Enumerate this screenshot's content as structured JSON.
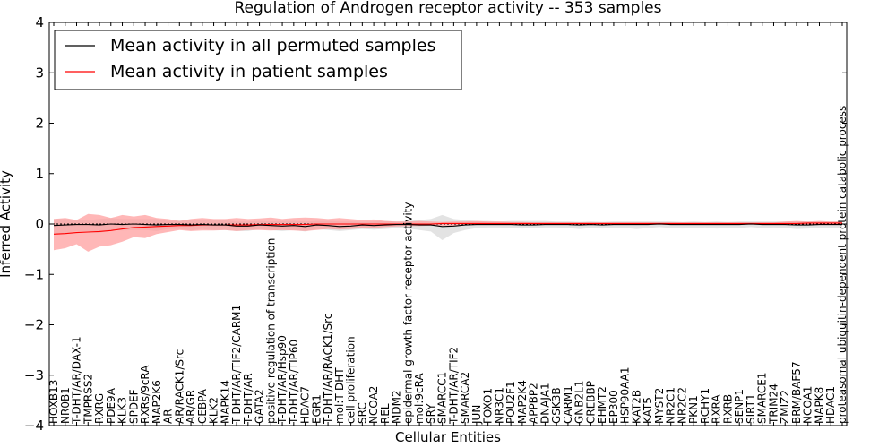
{
  "chart_data": {
    "type": "line",
    "title": "Regulation of Androgen receptor activity -- 353 samples",
    "xlabel": "Cellular Entities",
    "ylabel": "Inferred Activity",
    "ylim": [
      -4,
      4
    ],
    "yticks": [
      4,
      3,
      2,
      1,
      0,
      -1,
      -2,
      -3,
      -4
    ],
    "ytick_labels": [
      "4",
      "3",
      "2",
      "1",
      "0",
      "−1",
      "−2",
      "−3",
      "−4"
    ],
    "grid": false,
    "reference_line": 0,
    "legend": {
      "position": "top-left",
      "entries": [
        {
          "label": "Mean activity in all permuted samples",
          "color": "#000000"
        },
        {
          "label": "Mean activity in patient samples",
          "color": "#ff0000"
        }
      ]
    },
    "categories": [
      "HOXB13",
      "NR0B1",
      "T-DHT/AR/DAX-1",
      "TMPRSS2",
      "RXRG",
      "PDE9A",
      "KLK3",
      "SPDEF",
      "RXRs/9cRA",
      "MAP2K6",
      "AR",
      "AR/RACK1/Src",
      "AR/GR",
      "CEBPA",
      "KLK2",
      "MAPK14",
      "T-DHT/AR/TIF2/CARM1",
      "T-DHT/AR",
      "GATA2",
      "positive regulation of transcription",
      "T-DHT/AR/Hsp90",
      "T-DHT/AR/TIP60",
      "HDAC7",
      "EGR1",
      "T-DHT/AR/RACK1/Src",
      "mol:T-DHT",
      "cell proliferation",
      "SRC",
      "NCOA2",
      "REL",
      "MDM2",
      "epidermal growth factor receptor activity",
      "mol:9cRA",
      "SRY",
      "SMARCC1",
      "T-DHT/AR/TIF2",
      "SMARCA2",
      "JUN",
      "FOXO1",
      "NR3C1",
      "POU2F1",
      "MAP2K4",
      "APPBP2",
      "DNAJA1",
      "GSK3B",
      "CARM1",
      "GNB2L1",
      "CREBBP",
      "EHMT2",
      "EP300",
      "HSP90AA1",
      "KAT2B",
      "KAT5",
      "MYST2",
      "NR2C1",
      "NR2C2",
      "PKN1",
      "RCHY1",
      "RXRA",
      "RXRB",
      "SENP1",
      "SIRT1",
      "SMARCE1",
      "TRIM24",
      "ZMIZ2",
      "BRM/BAF57",
      "NCOA1",
      "MAPK8",
      "HDAC1",
      "proteasomal ubiquitin-dependent protein catabolic process"
    ],
    "series": [
      {
        "name": "Mean activity in patient samples",
        "color": "#ff0000",
        "band_color": "#ff9999",
        "values": [
          -0.2,
          -0.19,
          -0.17,
          -0.16,
          -0.15,
          -0.13,
          -0.1,
          -0.07,
          -0.06,
          -0.05,
          -0.04,
          -0.03,
          -0.03,
          -0.02,
          -0.02,
          -0.02,
          -0.02,
          -0.02,
          -0.01,
          -0.01,
          -0.01,
          -0.01,
          -0.01,
          0.0,
          0.0,
          0.0,
          0.0,
          0.0,
          0.0,
          0.0,
          0.0,
          0.0,
          0.0,
          0.0,
          0.01,
          0.01,
          0.01,
          0.01,
          0.01,
          0.01,
          0.01,
          0.01,
          0.01,
          0.01,
          0.01,
          0.01,
          0.01,
          0.01,
          0.01,
          0.01,
          0.01,
          0.01,
          0.01,
          0.01,
          0.01,
          0.01,
          0.01,
          0.01,
          0.01,
          0.01,
          0.01,
          0.01,
          0.01,
          0.01,
          0.01,
          0.01,
          0.02,
          0.02,
          0.02,
          0.02
        ],
        "upper": [
          0.1,
          0.12,
          0.08,
          0.2,
          0.18,
          0.12,
          0.18,
          0.15,
          0.18,
          0.12,
          0.1,
          0.06,
          0.1,
          0.12,
          0.1,
          0.1,
          0.12,
          0.1,
          0.11,
          0.13,
          0.1,
          0.12,
          0.13,
          0.12,
          0.1,
          0.12,
          0.1,
          0.08,
          0.09,
          0.06,
          0.05,
          0.05,
          0.06,
          0.05,
          0.04,
          0.05,
          0.05,
          0.06,
          0.05,
          0.05,
          0.04,
          0.04,
          0.03,
          0.03,
          0.03,
          0.03,
          0.03,
          0.03,
          0.03,
          0.03,
          0.03,
          0.03,
          0.03,
          0.03,
          0.03,
          0.03,
          0.03,
          0.03,
          0.03,
          0.03,
          0.03,
          0.03,
          0.03,
          0.03,
          0.05,
          0.06,
          0.05,
          0.06,
          0.05,
          0.05
        ],
        "lower": [
          -0.52,
          -0.48,
          -0.4,
          -0.55,
          -0.45,
          -0.42,
          -0.35,
          -0.26,
          -0.28,
          -0.2,
          -0.16,
          -0.12,
          -0.14,
          -0.13,
          -0.13,
          -0.12,
          -0.14,
          -0.12,
          -0.12,
          -0.13,
          -0.12,
          -0.13,
          -0.14,
          -0.12,
          -0.1,
          -0.11,
          -0.1,
          -0.08,
          -0.08,
          -0.06,
          -0.05,
          -0.04,
          -0.04,
          -0.03,
          -0.03,
          -0.03,
          -0.02,
          -0.02,
          -0.02,
          -0.02,
          -0.02,
          -0.01,
          -0.01,
          -0.01,
          -0.01,
          -0.01,
          -0.01,
          -0.01,
          -0.01,
          -0.01,
          -0.01,
          -0.01,
          -0.01,
          -0.01,
          -0.01,
          -0.01,
          -0.01,
          -0.01,
          -0.01,
          -0.01,
          -0.01,
          -0.01,
          -0.01,
          -0.01,
          -0.02,
          -0.02,
          -0.02,
          -0.02,
          -0.02,
          -0.02
        ]
      },
      {
        "name": "Mean activity in all permuted samples",
        "color": "#000000",
        "band_color": "#cccccc",
        "values": [
          -0.03,
          -0.02,
          -0.01,
          -0.01,
          -0.02,
          0.0,
          -0.01,
          0.0,
          -0.01,
          -0.02,
          -0.01,
          -0.01,
          -0.02,
          -0.01,
          -0.02,
          -0.02,
          -0.04,
          -0.04,
          -0.02,
          -0.03,
          -0.04,
          -0.03,
          -0.05,
          -0.02,
          -0.03,
          -0.05,
          -0.04,
          -0.02,
          -0.03,
          -0.02,
          -0.01,
          -0.01,
          -0.02,
          -0.02,
          -0.05,
          -0.04,
          -0.02,
          -0.01,
          -0.01,
          -0.01,
          -0.01,
          -0.02,
          -0.02,
          -0.01,
          -0.01,
          -0.01,
          -0.02,
          -0.01,
          -0.02,
          -0.01,
          -0.01,
          -0.01,
          -0.01,
          0.0,
          -0.01,
          -0.01,
          -0.01,
          -0.01,
          -0.01,
          -0.01,
          -0.01,
          0.0,
          -0.01,
          -0.01,
          -0.01,
          -0.02,
          -0.02,
          -0.01,
          -0.01,
          -0.01
        ],
        "upper": [
          0.1,
          0.1,
          0.08,
          0.08,
          0.1,
          0.12,
          0.1,
          0.1,
          0.1,
          0.1,
          0.06,
          0.07,
          0.08,
          0.08,
          0.08,
          0.08,
          0.05,
          0.05,
          0.06,
          0.05,
          0.06,
          0.06,
          0.05,
          0.06,
          0.06,
          0.05,
          0.05,
          0.04,
          0.05,
          0.06,
          0.05,
          0.06,
          0.08,
          0.1,
          0.18,
          0.1,
          0.08,
          0.06,
          0.06,
          0.05,
          0.06,
          0.06,
          0.06,
          0.06,
          0.05,
          0.05,
          0.04,
          0.05,
          0.04,
          0.05,
          0.05,
          0.05,
          0.05,
          0.05,
          0.05,
          0.04,
          0.05,
          0.04,
          0.05,
          0.04,
          0.05,
          0.05,
          0.05,
          0.05,
          0.05,
          0.05,
          0.05,
          0.05,
          0.05,
          0.05
        ],
        "lower": [
          -0.2,
          -0.18,
          -0.14,
          -0.15,
          -0.18,
          -0.12,
          -0.13,
          -0.12,
          -0.12,
          -0.14,
          -0.1,
          -0.1,
          -0.13,
          -0.1,
          -0.12,
          -0.12,
          -0.14,
          -0.14,
          -0.1,
          -0.12,
          -0.14,
          -0.12,
          -0.15,
          -0.1,
          -0.12,
          -0.14,
          -0.12,
          -0.1,
          -0.11,
          -0.1,
          -0.08,
          -0.09,
          -0.12,
          -0.15,
          -0.32,
          -0.18,
          -0.12,
          -0.08,
          -0.07,
          -0.07,
          -0.08,
          -0.09,
          -0.08,
          -0.07,
          -0.07,
          -0.08,
          -0.1,
          -0.08,
          -0.09,
          -0.08,
          -0.08,
          -0.1,
          -0.08,
          -0.06,
          -0.08,
          -0.09,
          -0.08,
          -0.07,
          -0.09,
          -0.08,
          -0.08,
          -0.06,
          -0.08,
          -0.07,
          -0.08,
          -0.1,
          -0.09,
          -0.08,
          -0.08,
          -0.08
        ]
      }
    ]
  }
}
